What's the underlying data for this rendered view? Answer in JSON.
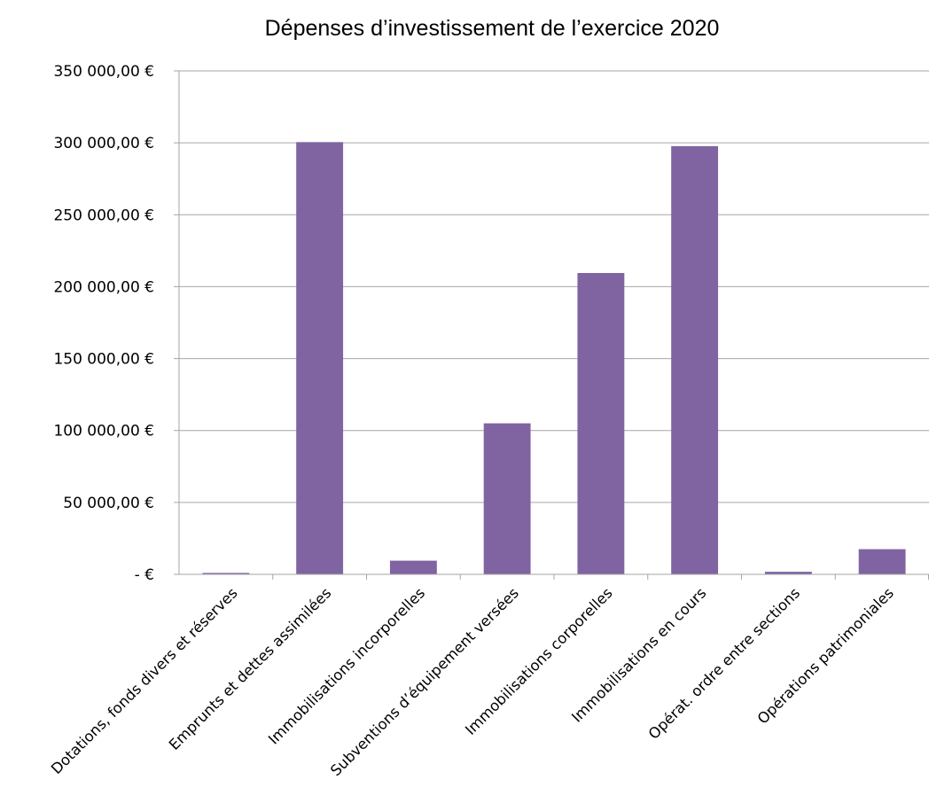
{
  "chart_data": {
    "type": "bar",
    "title": "Dépenses d’investissement de l’exercice 2020",
    "xlabel": "",
    "ylabel": "",
    "categories": [
      "Dotations, fonds divers et réserves",
      "Emprunts et dettes assimilées",
      "Immobilisations incorporelles",
      "Subventions d’équipement versées",
      "Immobilisations corporelles",
      "Immobilisations en cours",
      "Opérat. ordre entre sections",
      "Opérations patrimoniales"
    ],
    "values": [
      1000,
      300500,
      9500,
      105000,
      209500,
      297700,
      1800,
      17500
    ],
    "ylim": [
      0,
      350000
    ],
    "yticks": [
      0,
      50000,
      100000,
      150000,
      200000,
      250000,
      300000,
      350000
    ],
    "ytick_labels": [
      "-   €",
      "50 000,00 €",
      "100 000,00 €",
      "150 000,00 €",
      "200 000,00 €",
      "250 000,00 €",
      "300 000,00 €",
      "350 000,00 €"
    ],
    "grid": true,
    "legend": "none",
    "colors": {
      "bar": "#8064A2",
      "grid": "#A6A6A6",
      "axis": "#A6A6A6",
      "text": "#000000"
    }
  }
}
